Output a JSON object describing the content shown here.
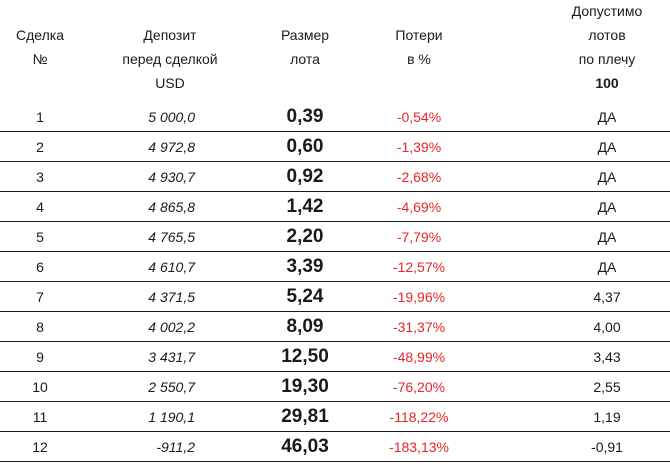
{
  "headers": {
    "deal": [
      "Сделка",
      "№"
    ],
    "deposit": [
      "Депозит",
      "перед сделкой",
      "USD"
    ],
    "lot": [
      "Размер",
      "лота"
    ],
    "loss": [
      "Потери",
      "в %"
    ],
    "allowed": [
      "Допустимо",
      "лотов",
      "по плечу",
      "100"
    ]
  },
  "rows": [
    {
      "deal": "1",
      "deposit": "5 000,0",
      "lot": "0,39",
      "loss": "-0,54%",
      "allowed": "ДА"
    },
    {
      "deal": "2",
      "deposit": "4 972,8",
      "lot": "0,60",
      "loss": "-1,39%",
      "allowed": "ДА"
    },
    {
      "deal": "3",
      "deposit": "4 930,7",
      "lot": "0,92",
      "loss": "-2,68%",
      "allowed": "ДА"
    },
    {
      "deal": "4",
      "deposit": "4 865,8",
      "lot": "1,42",
      "loss": "-4,69%",
      "allowed": "ДА"
    },
    {
      "deal": "5",
      "deposit": "4 765,5",
      "lot": "2,20",
      "loss": "-7,79%",
      "allowed": "ДА"
    },
    {
      "deal": "6",
      "deposit": "4 610,7",
      "lot": "3,39",
      "loss": "-12,57%",
      "allowed": "ДА"
    },
    {
      "deal": "7",
      "deposit": "4 371,5",
      "lot": "5,24",
      "loss": "-19,96%",
      "allowed": "4,37"
    },
    {
      "deal": "8",
      "deposit": "4 002,2",
      "lot": "8,09",
      "loss": "-31,37%",
      "allowed": "4,00"
    },
    {
      "deal": "9",
      "deposit": "3 431,7",
      "lot": "12,50",
      "loss": "-48,99%",
      "allowed": "3,43"
    },
    {
      "deal": "10",
      "deposit": "2 550,7",
      "lot": "19,30",
      "loss": "-76,20%",
      "allowed": "2,55"
    },
    {
      "deal": "11",
      "deposit": "1 190,1",
      "lot": "29,81",
      "loss": "-118,22%",
      "allowed": "1,19"
    },
    {
      "deal": "12",
      "deposit": "-911,2",
      "lot": "46,03",
      "loss": "-183,13%",
      "allowed": "-0,91"
    }
  ],
  "colors": {
    "loss": "#e8262b",
    "text": "#1a1a1a"
  }
}
